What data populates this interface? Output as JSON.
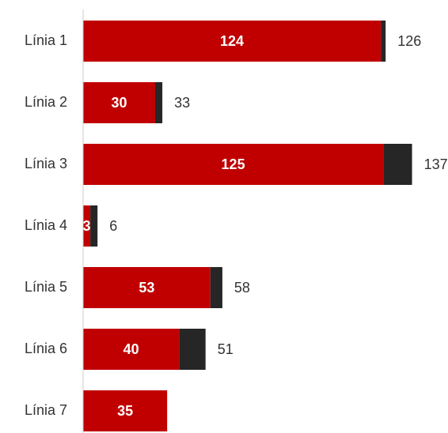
{
  "chart_data": {
    "type": "stacked-barh",
    "categories": [
      "Línia 1",
      "Línia 2",
      "Línia 3",
      "Línia 4",
      "Línia 5",
      "Línia 6",
      "Línia 7"
    ],
    "series": [
      {
        "color": "#c00000",
        "values": [
          124,
          30,
          125,
          3,
          53,
          40,
          35
        ]
      },
      {
        "color": "#262626",
        "values": [
          2,
          3,
          12,
          3,
          5,
          11,
          null
        ]
      }
    ],
    "totals": [
      126,
      33,
      137,
      6,
      58,
      51,
      null
    ],
    "xlim": [
      0,
      150
    ]
  }
}
